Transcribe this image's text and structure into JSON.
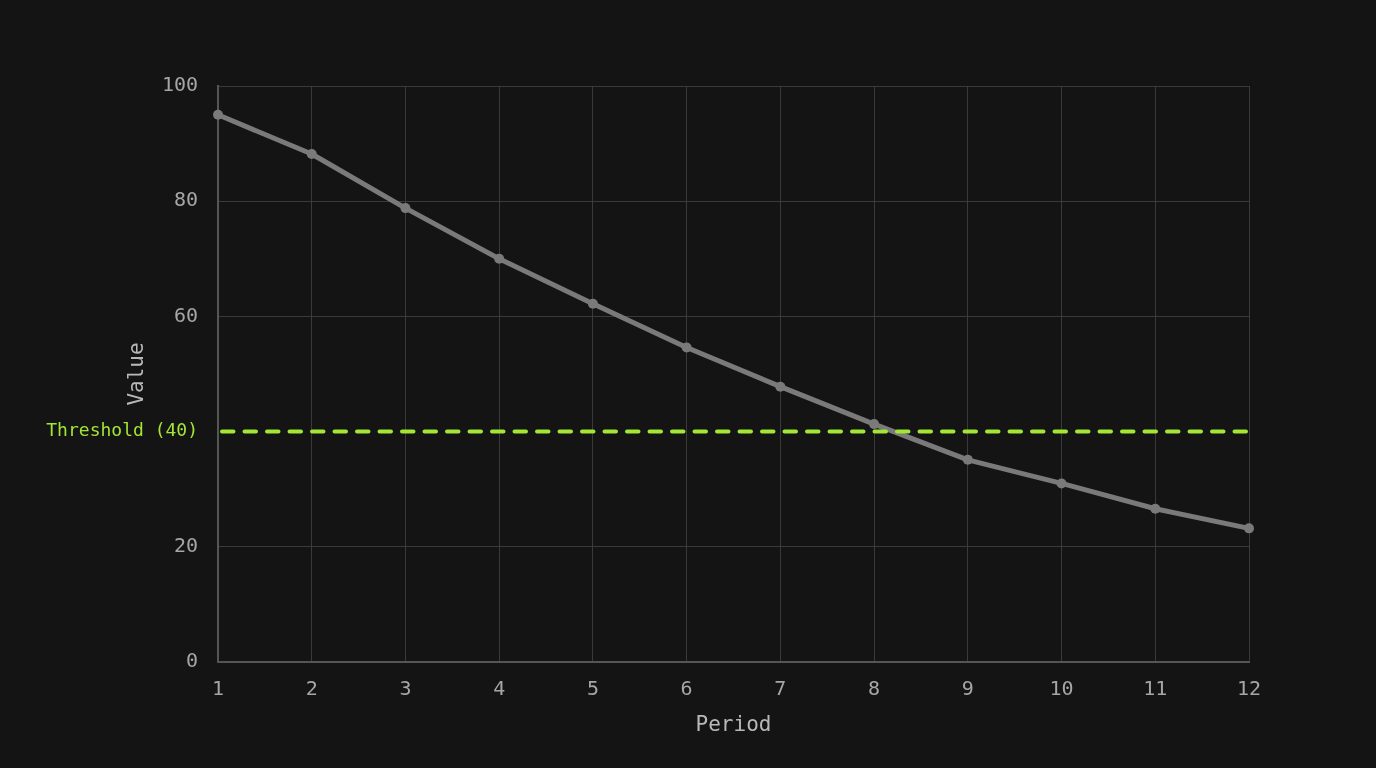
{
  "chart_data": {
    "type": "line",
    "xlabel": "Period",
    "ylabel": "Value",
    "x": [
      1,
      2,
      3,
      4,
      5,
      6,
      7,
      8,
      9,
      10,
      11,
      12
    ],
    "series": [
      {
        "color": "#7a7a7a",
        "values": [
          95,
          88.2,
          78.8,
          70,
          62.2,
          54.6,
          47.8,
          41.3,
          35.1,
          31,
          26.6,
          23.2
        ]
      }
    ],
    "xlim": [
      1,
      12
    ],
    "xticks": [
      1,
      2,
      3,
      4,
      5,
      6,
      7,
      8,
      9,
      10,
      11,
      12
    ],
    "ylim": [
      0,
      100
    ],
    "yticks": [
      0,
      20,
      60,
      80,
      100
    ],
    "grid": true,
    "marker": "circle",
    "line_style": "solid",
    "ref_lines": [
      {
        "axis": "y",
        "value": 40,
        "label": "Threshold (40)",
        "color": "#a3e635",
        "line_style": "dashed"
      }
    ]
  }
}
